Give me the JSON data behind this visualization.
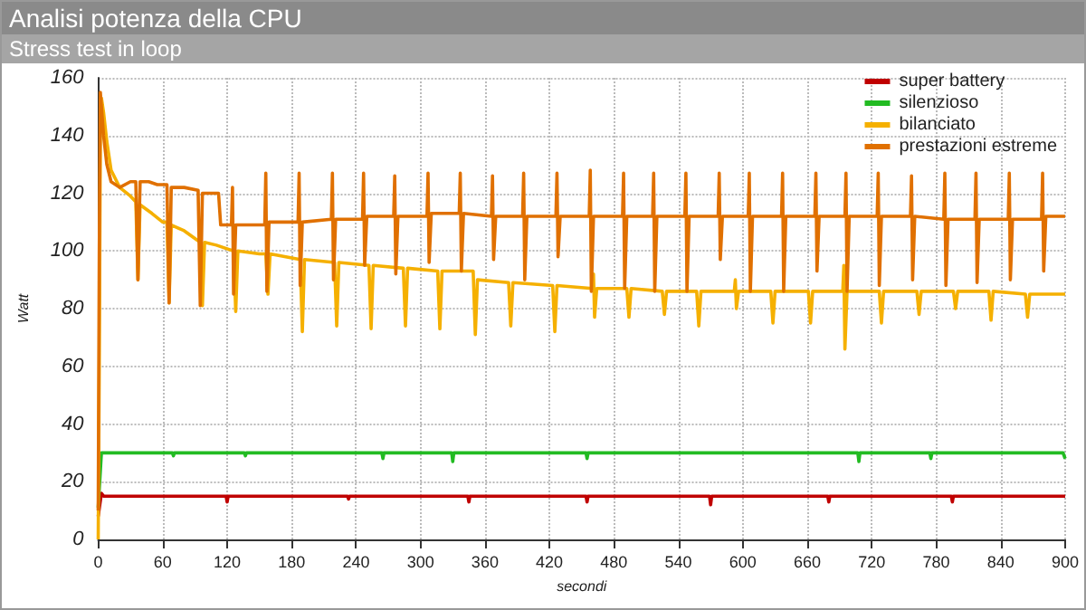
{
  "chart_data": {
    "type": "line",
    "title": "Analisi potenza della CPU",
    "subtitle": "Stress test in loop",
    "xlabel": "secondi",
    "ylabel": "Watt",
    "xlim": [
      0,
      900
    ],
    "xticks": [
      0,
      60,
      120,
      180,
      240,
      300,
      360,
      420,
      480,
      540,
      600,
      660,
      720,
      780,
      840,
      900
    ],
    "ylim": [
      0,
      160
    ],
    "yticks": [
      0,
      20,
      40,
      60,
      80,
      100,
      120,
      140,
      160
    ],
    "grid": true,
    "legend": "top right",
    "marker": "none",
    "line_style": "solid",
    "series": [
      {
        "name": "super battery",
        "color": "#c00000",
        "x": [
          0,
          3,
          5,
          119,
          120,
          121,
          232,
          233,
          234,
          344,
          345,
          346,
          454,
          455,
          456,
          569,
          570,
          571,
          679,
          680,
          681,
          794,
          795,
          796,
          900
        ],
        "values": [
          8,
          16,
          15,
          15,
          13,
          15,
          15,
          14,
          15,
          15,
          13,
          15,
          15,
          13,
          15,
          15,
          12,
          15,
          15,
          13,
          15,
          15,
          13,
          15,
          15
        ]
      },
      {
        "name": "silenzioso",
        "color": "#22bb22",
        "x": [
          0,
          3,
          5,
          69,
          70,
          71,
          136,
          137,
          138,
          264,
          265,
          266,
          329,
          330,
          331,
          454,
          455,
          456,
          707,
          708,
          709,
          774,
          775,
          776,
          898,
          900
        ],
        "values": [
          11,
          30,
          30,
          30,
          29,
          30,
          30,
          29,
          30,
          30,
          28,
          30,
          30,
          27,
          30,
          30,
          28,
          30,
          30,
          27,
          30,
          30,
          28,
          30,
          30,
          28
        ]
      },
      {
        "name": "bilanciato",
        "color": "#f5b000",
        "x": [
          0,
          1,
          2,
          3,
          5,
          8,
          12,
          20,
          30,
          35,
          36,
          37,
          39,
          50,
          60,
          64,
          65,
          66,
          68,
          80,
          95,
          96,
          97,
          99,
          110,
          126,
          127,
          128,
          130,
          150,
          156,
          157,
          158,
          160,
          188,
          189,
          190,
          192,
          220,
          221,
          222,
          224,
          252,
          253,
          254,
          256,
          284,
          285,
          286,
          288,
          316,
          317,
          318,
          320,
          349,
          350,
          351,
          353,
          382,
          383,
          384,
          386,
          423,
          424,
          425,
          427,
          460,
          461,
          462,
          464,
          492,
          493,
          494,
          496,
          525,
          526,
          527,
          529,
          557,
          558,
          559,
          561,
          592,
          593,
          594,
          596,
          626,
          627,
          628,
          630,
          661,
          662,
          663,
          665,
          693,
          694,
          695,
          697,
          727,
          728,
          729,
          731,
          762,
          763,
          764,
          766,
          796,
          797,
          798,
          800,
          829,
          830,
          831,
          833,
          863,
          864,
          865,
          867,
          900
        ],
        "values": [
          0,
          60,
          140,
          153,
          148,
          138,
          128,
          122,
          119,
          117,
          117,
          90,
          116,
          113,
          110,
          110,
          110,
          82,
          109,
          107,
          103,
          103,
          81,
          103,
          102,
          100,
          100,
          79,
          100,
          99,
          99,
          99,
          85,
          99,
          97,
          97,
          72,
          97,
          96,
          96,
          74,
          96,
          95,
          95,
          73,
          95,
          94,
          94,
          74,
          94,
          93,
          93,
          73,
          93,
          93,
          93,
          71,
          90,
          89,
          89,
          74,
          89,
          88,
          88,
          72,
          88,
          87,
          92,
          77,
          87,
          87,
          87,
          77,
          87,
          86,
          86,
          78,
          86,
          86,
          86,
          74,
          86,
          86,
          90,
          80,
          86,
          86,
          86,
          75,
          86,
          86,
          86,
          75,
          86,
          86,
          95,
          66,
          86,
          86,
          86,
          75,
          86,
          86,
          86,
          78,
          86,
          86,
          86,
          80,
          86,
          86,
          86,
          76,
          86,
          85,
          85,
          77,
          85,
          85
        ]
      },
      {
        "name": "prestazioni estreme",
        "color": "#e07000",
        "x": [
          0,
          1,
          2,
          3,
          5,
          8,
          12,
          20,
          30,
          35,
          36,
          37,
          39,
          47,
          55,
          64,
          65,
          66,
          68,
          80,
          93,
          94,
          95,
          97,
          110,
          112,
          114,
          124,
          125,
          126,
          128,
          155,
          156,
          157,
          159,
          186,
          187,
          188,
          190,
          217,
          218,
          219,
          221,
          246,
          247,
          248,
          250,
          275,
          276,
          277,
          279,
          306,
          307,
          308,
          310,
          336,
          337,
          338,
          340,
          366,
          367,
          368,
          370,
          395,
          396,
          397,
          399,
          426,
          427,
          428,
          430,
          457,
          458,
          459,
          461,
          488,
          489,
          490,
          492,
          516,
          517,
          518,
          520,
          546,
          547,
          548,
          550,
          577,
          578,
          579,
          581,
          605,
          606,
          607,
          609,
          636,
          637,
          638,
          640,
          667,
          668,
          669,
          671,
          695,
          696,
          697,
          699,
          725,
          726,
          727,
          729,
          756,
          757,
          758,
          760,
          787,
          788,
          789,
          791,
          816,
          817,
          818,
          820,
          847,
          848,
          849,
          851,
          878,
          879,
          880,
          882,
          900
        ],
        "values": [
          10,
          100,
          155,
          150,
          140,
          130,
          124,
          122,
          124,
          124,
          124,
          90,
          124,
          124,
          123,
          123,
          123,
          82,
          122,
          122,
          121,
          121,
          81,
          120,
          120,
          120,
          109,
          109,
          122,
          85,
          109,
          109,
          127,
          86,
          110,
          110,
          127,
          88,
          110,
          111,
          127,
          90,
          111,
          111,
          127,
          95,
          112,
          112,
          126,
          92,
          112,
          112,
          127,
          96,
          113,
          113,
          127,
          93,
          113,
          112,
          126,
          97,
          112,
          112,
          127,
          90,
          112,
          112,
          127,
          98,
          112,
          112,
          128,
          86,
          112,
          112,
          127,
          87,
          112,
          112,
          127,
          86,
          112,
          112,
          127,
          86,
          112,
          112,
          127,
          97,
          112,
          112,
          127,
          86,
          112,
          112,
          127,
          86,
          112,
          112,
          127,
          93,
          112,
          112,
          127,
          86,
          112,
          112,
          127,
          88,
          112,
          112,
          126,
          90,
          112,
          111,
          127,
          88,
          111,
          111,
          127,
          89,
          111,
          111,
          127,
          90,
          111,
          111,
          127,
          93,
          112,
          112
        ]
      }
    ]
  }
}
